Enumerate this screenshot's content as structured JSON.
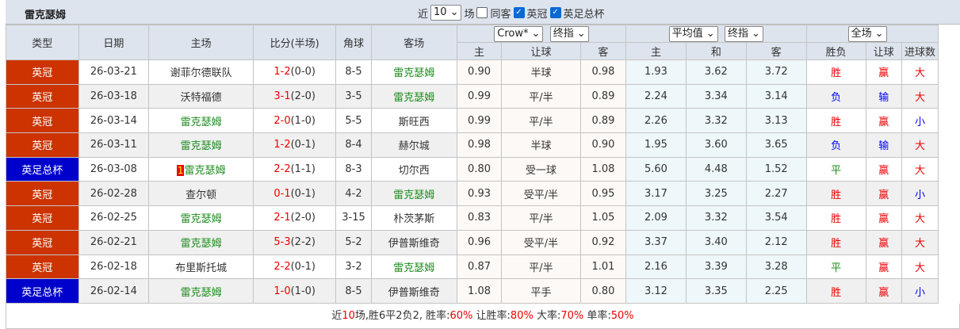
{
  "title": "雷克瑟姆",
  "filters": {
    "prefix": "近",
    "count": "10",
    "suffix": "场",
    "same_venue": "同客",
    "same_venue_checked": false,
    "league1": "英冠",
    "league1_checked": true,
    "league2": "英足总杯",
    "league2_checked": true
  },
  "headers": {
    "type": "类型",
    "date": "日期",
    "home": "主场",
    "score": "比分(半场)",
    "corner": "角球",
    "away": "客场",
    "company": "Crow*",
    "odds_kind": "终指",
    "avg": "平均值",
    "avg_kind": "终指",
    "scope": "全场",
    "ah_home": "主",
    "ah_line": "让球",
    "ah_away": "客",
    "eu_home": "主",
    "eu_draw": "和",
    "eu_away": "客",
    "res_wl": "胜负",
    "res_ah": "让球",
    "res_goals": "进球数"
  },
  "colors": {
    "league_英冠": "#cc3300",
    "league_英足总杯": "#0000cc",
    "win": "#ee0000",
    "lose": "#0000ff",
    "draw": "#1a8a1a"
  },
  "rows": [
    {
      "type": "英冠",
      "date": "26-03-21",
      "home": "谢菲尔德联队",
      "home_team": false,
      "score": "1-2",
      "half": "(0-0)",
      "corner": "8-5",
      "away": "雷克瑟姆",
      "away_team": true,
      "ah_h": "0.90",
      "ah_l": "半球",
      "ah_a": "0.98",
      "eu_h": "1.93",
      "eu_d": "3.62",
      "eu_a": "3.72",
      "wl": "胜",
      "ah": "赢",
      "goals": "大"
    },
    {
      "type": "英冠",
      "date": "26-03-18",
      "home": "沃特福德",
      "home_team": false,
      "score": "3-1",
      "half": "(2-0)",
      "corner": "3-5",
      "away": "雷克瑟姆",
      "away_team": true,
      "ah_h": "0.99",
      "ah_l": "平/半",
      "ah_a": "0.89",
      "eu_h": "2.24",
      "eu_d": "3.34",
      "eu_a": "3.14",
      "wl": "负",
      "ah": "输",
      "goals": "大"
    },
    {
      "type": "英冠",
      "date": "26-03-14",
      "home": "雷克瑟姆",
      "home_team": true,
      "score": "2-0",
      "half": "(1-0)",
      "corner": "5-5",
      "away": "斯旺西",
      "away_team": false,
      "ah_h": "0.99",
      "ah_l": "平/半",
      "ah_a": "0.89",
      "eu_h": "2.26",
      "eu_d": "3.32",
      "eu_a": "3.13",
      "wl": "胜",
      "ah": "赢",
      "goals": "小"
    },
    {
      "type": "英冠",
      "date": "26-03-11",
      "home": "雷克瑟姆",
      "home_team": true,
      "score": "1-2",
      "half": "(0-1)",
      "corner": "8-4",
      "away": "赫尔城",
      "away_team": false,
      "ah_h": "0.98",
      "ah_l": "半球",
      "ah_a": "0.90",
      "eu_h": "1.95",
      "eu_d": "3.60",
      "eu_a": "3.65",
      "wl": "负",
      "ah": "输",
      "goals": "大"
    },
    {
      "type": "英足总杯",
      "date": "26-03-08",
      "home": "雷克瑟姆",
      "home_team": true,
      "rank": "1",
      "score": "2-2",
      "half": "(1-1)",
      "corner": "8-3",
      "away": "切尔西",
      "away_team": false,
      "ah_h": "0.80",
      "ah_l": "受一球",
      "ah_a": "1.08",
      "eu_h": "5.60",
      "eu_d": "4.48",
      "eu_a": "1.52",
      "wl": "平",
      "ah": "赢",
      "goals": "大"
    },
    {
      "type": "英冠",
      "date": "26-02-28",
      "home": "查尔顿",
      "home_team": false,
      "score": "0-1",
      "half": "(0-1)",
      "corner": "4-2",
      "away": "雷克瑟姆",
      "away_team": true,
      "ah_h": "0.93",
      "ah_l": "受平/半",
      "ah_a": "0.95",
      "eu_h": "3.17",
      "eu_d": "3.25",
      "eu_a": "2.27",
      "wl": "胜",
      "ah": "赢",
      "goals": "小"
    },
    {
      "type": "英冠",
      "date": "26-02-25",
      "home": "雷克瑟姆",
      "home_team": true,
      "score": "2-1",
      "half": "(2-0)",
      "corner": "3-15",
      "away": "朴茨茅斯",
      "away_team": false,
      "ah_h": "0.83",
      "ah_l": "平/半",
      "ah_a": "1.05",
      "eu_h": "2.09",
      "eu_d": "3.32",
      "eu_a": "3.54",
      "wl": "胜",
      "ah": "赢",
      "goals": "大"
    },
    {
      "type": "英冠",
      "date": "26-02-21",
      "home": "雷克瑟姆",
      "home_team": true,
      "score": "5-3",
      "half": "(2-2)",
      "corner": "5-2",
      "away": "伊普斯维奇",
      "away_team": false,
      "ah_h": "0.96",
      "ah_l": "受平/半",
      "ah_a": "0.92",
      "eu_h": "3.37",
      "eu_d": "3.40",
      "eu_a": "2.12",
      "wl": "胜",
      "ah": "赢",
      "goals": "大"
    },
    {
      "type": "英冠",
      "date": "26-02-18",
      "home": "布里斯托城",
      "home_team": false,
      "score": "2-2",
      "half": "(0-1)",
      "corner": "3-2",
      "away": "雷克瑟姆",
      "away_team": true,
      "ah_h": "0.87",
      "ah_l": "平/半",
      "ah_a": "1.01",
      "eu_h": "2.16",
      "eu_d": "3.39",
      "eu_a": "3.28",
      "wl": "平",
      "ah": "赢",
      "goals": "大"
    },
    {
      "type": "英足总杯",
      "date": "26-02-14",
      "home": "雷克瑟姆",
      "home_team": true,
      "score": "1-0",
      "half": "(1-0)",
      "corner": "8-5",
      "away": "伊普斯维奇",
      "away_team": false,
      "ah_h": "1.08",
      "ah_l": "平手",
      "ah_a": "0.80",
      "eu_h": "3.12",
      "eu_d": "3.35",
      "eu_a": "2.25",
      "wl": "胜",
      "ah": "赢",
      "goals": "小"
    }
  ],
  "summary": {
    "p1": "近",
    "n": "10",
    "p2": "场,胜6平2负2, 胜率:",
    "win_rate": "60%",
    "p3": " 让胜率:",
    "ah_rate": "80%",
    "p4": " 大率:",
    "over_rate": "70%",
    "p5": " 单率:",
    "odd_rate": "50%"
  }
}
